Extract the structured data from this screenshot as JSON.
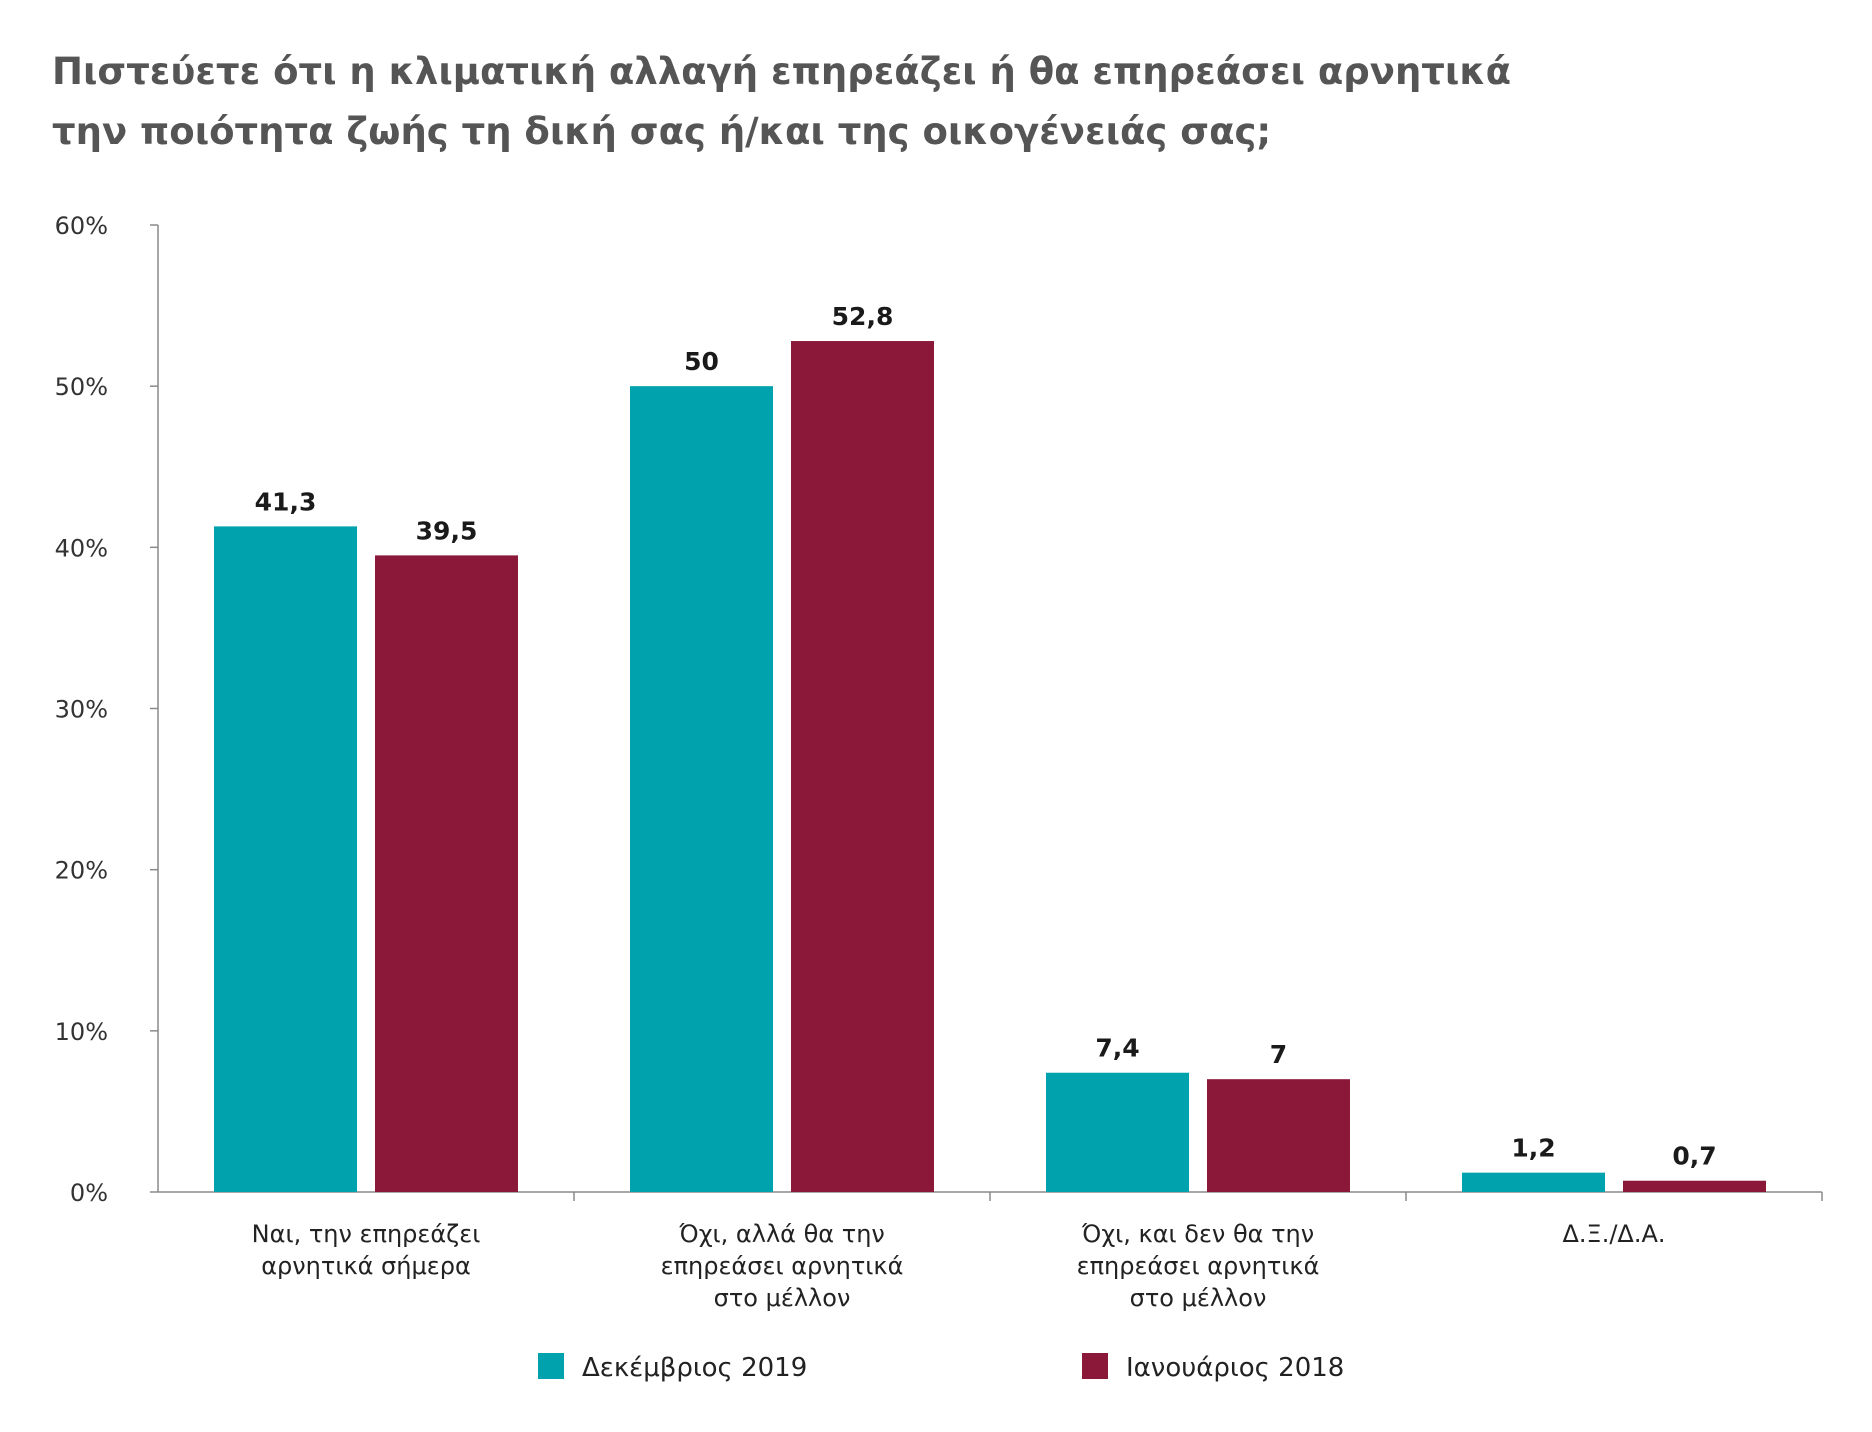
{
  "title_lines": [
    "Πιστεύετε ότι η κλιματική αλλαγή επηρεάζει ή θα επηρεάσει αρνητικά",
    "την ποιότητα ζωής τη δική σας ή/και της οικογένειάς σας;"
  ],
  "chart_data": {
    "type": "bar",
    "categories": [
      [
        "Ναι, την επηρεάζει",
        "αρνητικά σήμερα"
      ],
      [
        "Όχι, αλλά θα την",
        "επηρεάσει αρνητικά",
        "στο μέλλον"
      ],
      [
        "Όχι, και δεν θα την",
        "επηρεάσει αρνητικά",
        "στο μέλλον"
      ],
      [
        "Δ.Ξ./Δ.Α."
      ]
    ],
    "series": [
      {
        "name": "Δεκέμβριος 2019",
        "color": "#00A2AE",
        "values": [
          41.3,
          50,
          7.4,
          1.2
        ],
        "labels": [
          "41,3",
          "50",
          "7,4",
          "1,2"
        ]
      },
      {
        "name": "Ιανουάριος 2018",
        "color": "#8B1838",
        "values": [
          39.5,
          52.8,
          7,
          0.7
        ],
        "labels": [
          "39,5",
          "52,8",
          "7",
          "0,7"
        ]
      }
    ],
    "ylim": [
      0,
      60
    ],
    "yticks": [
      0,
      10,
      20,
      30,
      40,
      50,
      60
    ],
    "ytick_labels": [
      "0%",
      "10%",
      "20%",
      "30%",
      "40%",
      "50%",
      "60%"
    ],
    "grid": false,
    "legend_position": "bottom"
  }
}
